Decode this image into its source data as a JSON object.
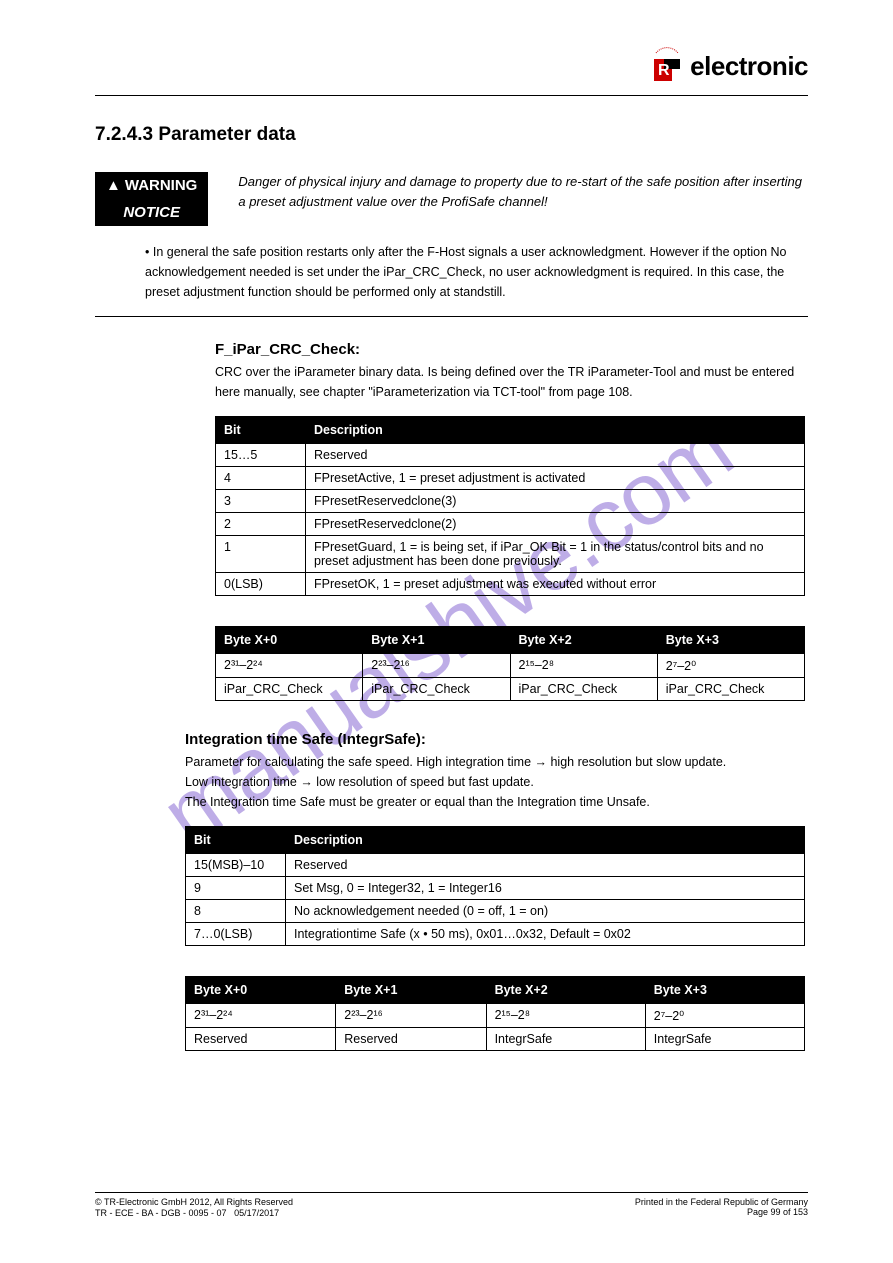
{
  "watermark": "manualshive.com",
  "logo": {
    "text": "electronic"
  },
  "section": {
    "number": "7.2.4.3",
    "title": "Parameter data"
  },
  "warning": {
    "label1": "WARNING",
    "label2": "NOTICE",
    "text": "Danger of physical injury and damage to property due to re-start of the safe position after inserting a preset adjustment value over the ProfiSafe channel!"
  },
  "intro_list": "• In general the safe position restarts only after the F-Host signals a user acknowledgment. However if the option No acknowledgement needed is set under the iPar_CRC_Check, no user acknowledgment is required. In this case, the preset adjustment function should be performed only at standstill.",
  "section1": {
    "title": "F_iPar_CRC_Check:",
    "desc": "CRC over the iParameter binary data. Is being defined over the TR iParameter-Tool and must be entered here manually, see chapter \"iParameterization via TCT-tool\" from page 108.",
    "table": {
      "h1": "Bit",
      "h2": "Description",
      "rows": [
        [
          "15…5",
          "Reserved"
        ],
        [
          "4",
          "FPresetActive, 1 = preset adjustment is activated"
        ],
        [
          "3",
          "FPresetReservedclone(3)"
        ],
        [
          "2",
          "FPresetReservedclone(2)"
        ],
        [
          "1",
          "FPresetGuard, 1 = is being set, if iPar_OK Bit = 1 in the status/control bits and no preset adjustment has been done previously."
        ],
        [
          "0(LSB)",
          "FPresetOK, 1 = preset adjustment was executed without error"
        ]
      ]
    },
    "table2": {
      "headers": [
        "Byte X+0",
        "Byte X+1",
        "Byte X+2",
        "Byte X+3"
      ],
      "row_h": [
        "2³¹–2²⁴",
        "2²³–2¹⁶",
        "2¹⁵–2⁸",
        "2⁷–2⁰"
      ],
      "row_v": [
        "iPar_CRC_Check",
        "iPar_CRC_Check",
        "iPar_CRC_Check",
        "iPar_CRC_Check"
      ]
    }
  },
  "section2": {
    "title": "Integration time Safe (IntegrSafe):",
    "desc_lines": [
      "Parameter for calculating the safe speed. High integration time → high resolution but slow update.",
      "Low integration time → low resolution of speed but fast update.",
      "The Integration time Safe must be greater or equal than the Integration time Unsafe."
    ],
    "table": {
      "h1": "Bit",
      "h2": "Description",
      "rows": [
        [
          "15(MSB)–10",
          "Reserved"
        ],
        [
          "9",
          "Set Msg, 0 = Integer32, 1 = Integer16"
        ],
        [
          "8",
          "No acknowledgement needed (0 = off, 1 = on)"
        ],
        [
          "7…0(LSB)",
          "Integrationtime Safe (x • 50 ms), 0x01…0x32, Default = 0x02"
        ]
      ]
    },
    "table2": {
      "headers": [
        "Byte X+0",
        "Byte X+1",
        "Byte X+2",
        "Byte X+3"
      ],
      "row_h": [
        "2³¹–2²⁴",
        "2²³–2¹⁶",
        "2¹⁵–2⁸",
        "2⁷–2⁰"
      ],
      "row_v": [
        "Reserved",
        "Reserved",
        "IntegrSafe",
        "IntegrSafe"
      ]
    }
  },
  "footer": {
    "copyright": "© TR-Electronic GmbH 2012, All Rights Reserved",
    "printed": "Printed in the Federal Republic of Germany",
    "doc": "TR - ECE - BA - DGB - 0095 - 07",
    "date": "05/17/2017",
    "page": "Page 99 of 153"
  }
}
